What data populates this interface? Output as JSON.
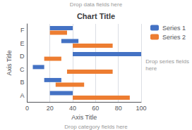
{
  "chart_data": {
    "type": "bar",
    "orientation": "horizontal",
    "title": "Chart Title",
    "xlabel": "Axis Title",
    "ylabel": "Axis Title",
    "categories": [
      "A",
      "B",
      "C",
      "D",
      "E",
      "F"
    ],
    "series": [
      {
        "name": "Series 1",
        "color": "#4472C4",
        "values": [
          [
            20,
            40
          ],
          [
            15,
            30
          ],
          [
            5,
            15
          ],
          [
            40,
            100
          ],
          [
            30,
            45
          ],
          [
            20,
            40
          ]
        ]
      },
      {
        "name": "Series 2",
        "color": "#ED7D31",
        "values": [
          [
            40,
            90
          ],
          [
            25,
            50
          ],
          [
            35,
            75
          ],
          [
            15,
            30
          ],
          [
            40,
            75
          ],
          [
            20,
            35
          ]
        ]
      }
    ],
    "xlim": [
      0,
      100
    ],
    "xticks": [
      0,
      20,
      40,
      60,
      80,
      100
    ],
    "grid": true,
    "legend": "upper right",
    "annotations": [
      "Drop data fields here",
      "Drop series fields\nhere",
      "Drop category fields here"
    ]
  }
}
